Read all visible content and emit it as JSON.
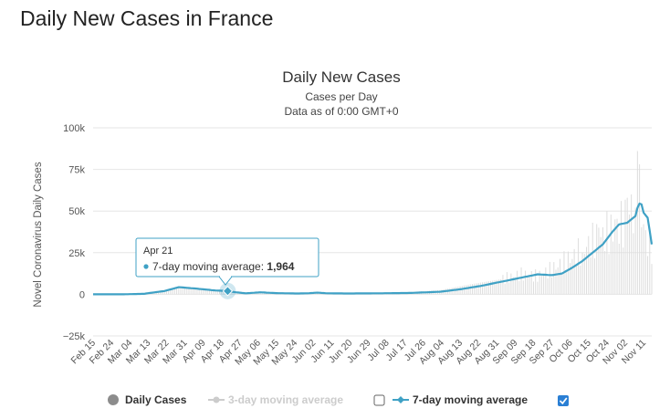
{
  "page": {
    "title": "Daily New Cases in France"
  },
  "chart_data": {
    "type": "bar",
    "title": "Daily New Cases",
    "subtitle_1": "Cases per Day",
    "subtitle_2": "Data as of 0:00 GMT+0",
    "ylabel": "Novel Coronavirus Daily Cases",
    "xlabel": "",
    "ylim": [
      -25000,
      100000
    ],
    "yticks": [
      {
        "value": 100000,
        "label": "100k"
      },
      {
        "value": 75000,
        "label": "75k"
      },
      {
        "value": 50000,
        "label": "50k"
      },
      {
        "value": 25000,
        "label": "25k"
      },
      {
        "value": 0,
        "label": "0"
      },
      {
        "value": -25000,
        "label": "−25k"
      }
    ],
    "start_date": "Feb 15",
    "num_days": 275,
    "xtick_labels": [
      "Feb 15",
      "Feb 24",
      "Mar 04",
      "Mar 13",
      "Mar 22",
      "Mar 31",
      "Apr 09",
      "Apr 18",
      "Apr 27",
      "May 06",
      "May 15",
      "May 24",
      "Jun 02",
      "Jun 11",
      "Jun 20",
      "Jun 29",
      "Jul 08",
      "Jul 17",
      "Jul 26",
      "Aug 04",
      "Aug 13",
      "Aug 22",
      "Aug 31",
      "Sep 09",
      "Sep 18",
      "Sep 27",
      "Oct 06",
      "Oct 15",
      "Oct 24",
      "Nov 02",
      "Nov 11"
    ],
    "xtick_interval_days": 9,
    "series": [
      {
        "name": "Daily Cases",
        "kind": "bars",
        "color": "#dddddd",
        "visible": true,
        "keypoints": [
          [
            0,
            0
          ],
          [
            15,
            0
          ],
          [
            25,
            300
          ],
          [
            35,
            2500
          ],
          [
            42,
            4500
          ],
          [
            48,
            3500
          ],
          [
            60,
            2000
          ],
          [
            70,
            1000
          ],
          [
            75,
            500
          ],
          [
            85,
            600
          ],
          [
            95,
            500
          ],
          [
            110,
            600
          ],
          [
            130,
            700
          ],
          [
            150,
            1000
          ],
          [
            170,
            2500
          ],
          [
            185,
            6000
          ],
          [
            200,
            9000
          ],
          [
            210,
            12000
          ],
          [
            218,
            11000
          ],
          [
            225,
            15000
          ],
          [
            235,
            22000
          ],
          [
            245,
            32000
          ],
          [
            255,
            38000
          ],
          [
            262,
            45000
          ],
          [
            266,
            50000
          ],
          [
            268,
            60000
          ],
          [
            270,
            40000
          ],
          [
            272,
            30000
          ],
          [
            274,
            28000
          ]
        ],
        "spikes": [
          [
            240,
            25000
          ],
          [
            248,
            40000
          ],
          [
            252,
            50000
          ],
          [
            256,
            45000
          ],
          [
            262,
            58000
          ],
          [
            264,
            60000
          ],
          [
            266,
            52000
          ],
          [
            267,
            86000
          ]
        ]
      },
      {
        "name": "3-day moving average",
        "kind": "line",
        "color": "#cccccc",
        "visible": false
      },
      {
        "name": "7-day moving average",
        "kind": "line",
        "color": "#3fa1c5",
        "visible": true,
        "keypoints": [
          [
            0,
            0
          ],
          [
            15,
            0
          ],
          [
            25,
            300
          ],
          [
            35,
            2000
          ],
          [
            42,
            4300
          ],
          [
            50,
            3500
          ],
          [
            60,
            2300
          ],
          [
            66,
            1964
          ],
          [
            70,
            1200
          ],
          [
            75,
            600
          ],
          [
            82,
            1200
          ],
          [
            90,
            700
          ],
          [
            100,
            500
          ],
          [
            105,
            600
          ],
          [
            110,
            1000
          ],
          [
            115,
            600
          ],
          [
            125,
            500
          ],
          [
            140,
            600
          ],
          [
            155,
            800
          ],
          [
            170,
            1500
          ],
          [
            180,
            3000
          ],
          [
            190,
            5000
          ],
          [
            200,
            7500
          ],
          [
            210,
            10000
          ],
          [
            218,
            12000
          ],
          [
            225,
            11500
          ],
          [
            230,
            12500
          ],
          [
            235,
            16000
          ],
          [
            240,
            20000
          ],
          [
            245,
            25000
          ],
          [
            250,
            30000
          ],
          [
            255,
            38000
          ],
          [
            258,
            42000
          ],
          [
            262,
            43000
          ],
          [
            264,
            45000
          ],
          [
            266,
            47000
          ],
          [
            267,
            52000
          ],
          [
            268,
            54500
          ],
          [
            269,
            54000
          ],
          [
            270,
            49000
          ],
          [
            272,
            46000
          ],
          [
            274,
            30000
          ]
        ]
      }
    ],
    "legend": [
      {
        "label": "Daily Cases",
        "color": "#333333",
        "checkbox": null
      },
      {
        "label": "3-day moving average",
        "color": "#cccccc",
        "checkbox": false
      },
      {
        "label": "7-day moving average",
        "color": "#333333",
        "checkbox": true
      }
    ],
    "tooltip": {
      "date": "Apr 21",
      "day_index": 66,
      "series_label": "7-day moving average:",
      "value_text": "1,964",
      "value": 1964
    },
    "colors": {
      "line": "#3fa1c5",
      "grid": "#e6e6e6",
      "bars": "#dddddd",
      "tooltip_border": "#3fa1c5",
      "checkbox_checked": "#2a7fd4"
    }
  }
}
